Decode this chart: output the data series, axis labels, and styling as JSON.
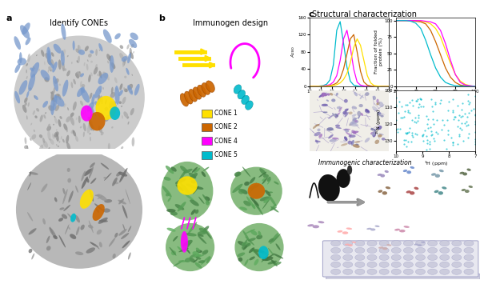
{
  "panel_a_title": "Identify CONEs",
  "panel_b_title": "Immunogen design",
  "panel_c_title": "Structural characterization",
  "panel_c_bottom_title": "Immunogenic characterization",
  "legend_items": [
    {
      "label": "CONE 1",
      "color": "#FFE000"
    },
    {
      "label": "CONE 2",
      "color": "#CC6600"
    },
    {
      "label": "CONE 4",
      "color": "#FF00FF"
    },
    {
      "label": "CONE 5",
      "color": "#00BBCC"
    }
  ],
  "sec_curves": {
    "volumes": [
      10.0,
      10.3,
      10.6,
      10.9,
      11.2,
      11.5,
      11.8,
      12.1,
      12.4,
      12.7,
      13.0,
      13.3,
      13.6,
      13.9,
      14.2,
      14.5,
      14.8,
      15.1,
      15.4,
      15.7,
      16.0,
      16.3,
      16.6,
      16.9,
      17.0
    ],
    "cone5": [
      0,
      0,
      0,
      1,
      2,
      5,
      15,
      50,
      130,
      150,
      100,
      45,
      12,
      3,
      1,
      0,
      0,
      0,
      0,
      0,
      0,
      0,
      0,
      0,
      0
    ],
    "cone4": [
      0,
      0,
      0,
      0,
      1,
      2,
      4,
      10,
      25,
      60,
      110,
      130,
      90,
      40,
      10,
      3,
      1,
      0,
      0,
      0,
      0,
      0,
      0,
      0,
      0
    ],
    "cone2": [
      0,
      0,
      0,
      0,
      0,
      1,
      2,
      4,
      8,
      18,
      40,
      75,
      110,
      120,
      80,
      35,
      10,
      3,
      1,
      0,
      0,
      0,
      0,
      0,
      0
    ],
    "cone1": [
      0,
      0,
      0,
      0,
      0,
      0,
      1,
      2,
      4,
      8,
      16,
      30,
      55,
      90,
      110,
      95,
      60,
      25,
      8,
      2,
      1,
      0,
      0,
      0,
      0
    ]
  },
  "tm_curves": {
    "temps": [
      20,
      25,
      30,
      35,
      40,
      45,
      50,
      55,
      60,
      65,
      70,
      75,
      80,
      85,
      90,
      95,
      100
    ],
    "cone1": [
      100,
      100,
      100,
      100,
      100,
      99,
      98,
      95,
      88,
      75,
      55,
      35,
      18,
      8,
      3,
      1,
      0
    ],
    "cone2": [
      100,
      100,
      100,
      100,
      99,
      98,
      95,
      85,
      68,
      48,
      28,
      14,
      6,
      2,
      1,
      0,
      0
    ],
    "cone4": [
      100,
      100,
      100,
      100,
      100,
      100,
      99,
      98,
      95,
      85,
      65,
      40,
      18,
      6,
      2,
      1,
      0
    ],
    "cone5": [
      100,
      100,
      100,
      99,
      96,
      88,
      70,
      48,
      28,
      14,
      6,
      3,
      1,
      0.5,
      0.2,
      0,
      0
    ]
  },
  "background_color": "#FFFFFF",
  "panel_label_fontsize": 8,
  "panel_title_fontsize": 7,
  "axes_fontsize": 4.5,
  "legend_fontsize": 5.5,
  "tick_fontsize": 4,
  "colors": {
    "cone1": "#FFE000",
    "cone2": "#CC6600",
    "cone4": "#FF00FF",
    "cone5": "#00BBCC"
  },
  "glycan_color": "#7799CC",
  "surface_gray": "#C8C8C8",
  "ribbon_gray": "#AAAAAA",
  "green_scaffold": "#88BB88",
  "antibody_colors_top": [
    "#9988BB",
    "#6688BB",
    "#889966",
    "#556644"
  ],
  "antibody_colors_bot": [
    "#CCAAAA",
    "#FFAAAA",
    "#AAAACC",
    "#BBAACC"
  ]
}
